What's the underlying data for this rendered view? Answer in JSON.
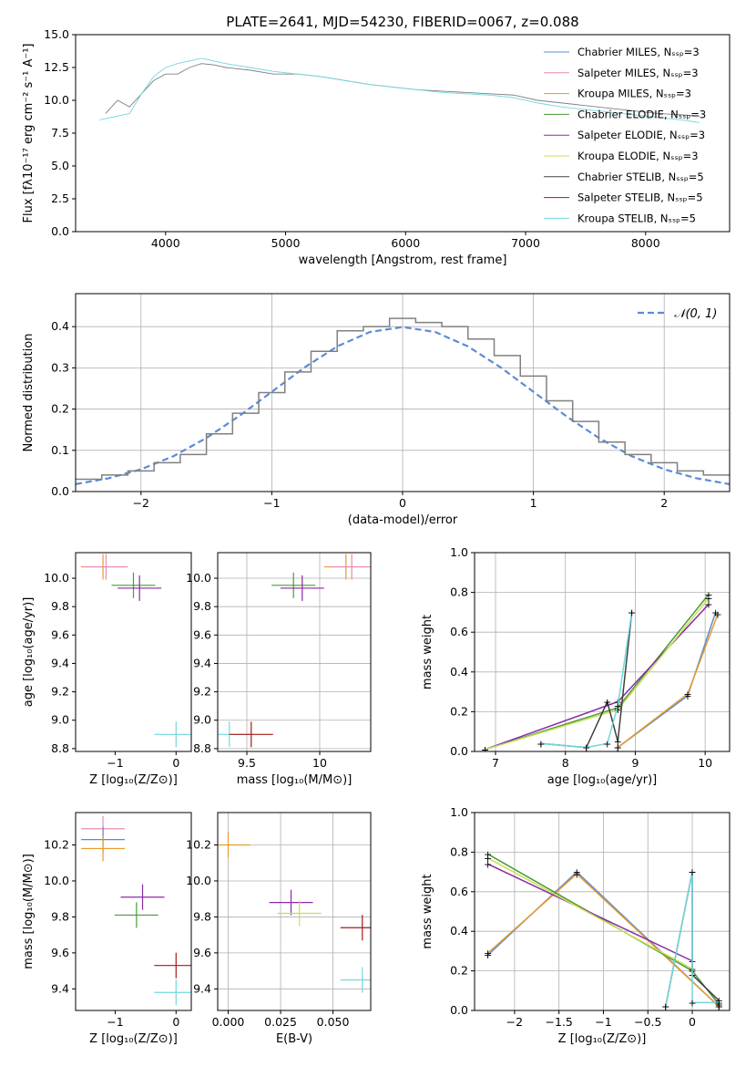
{
  "title": "PLATE=2641, MJD=54230, FIBERID=0067, z=0.088",
  "colors": {
    "Chabrier MILES": "#5b8cd6",
    "Salpeter MILES": "#e88bb8",
    "Kroupa MILES": "#e89a2a",
    "Chabrier ELODIE": "#4a9a3a",
    "Salpeter ELODIE": "#8a2aa8",
    "Kroupa ELODIE": "#c8e050",
    "Chabrier STELIB": "#404040",
    "Salpeter STELIB": "#a81818",
    "Kroupa STELIB": "#70d8dc"
  },
  "chart_data": [
    {
      "type": "line",
      "title": "PLATE=2641, MJD=54230, FIBERID=0067, z=0.088",
      "xlabel": "wavelength [Angstrom, rest frame]",
      "ylabel": "Flux [fλ10⁻¹⁷ erg cm⁻² s⁻¹ A⁻¹]",
      "xlim": [
        3250,
        8700
      ],
      "ylim": [
        0,
        15
      ],
      "xticks": [
        4000,
        5000,
        6000,
        7000,
        8000
      ],
      "yticks": [
        0.0,
        2.5,
        5.0,
        7.5,
        10.0,
        12.5,
        15.0
      ],
      "legend_position": "top-right",
      "legend": [
        "Chabrier MILES, N_SSP=3",
        "Salpeter MILES, N_SSP=3",
        "Kroupa MILES, N_SSP=3",
        "Chabrier ELODIE, N_SSP=3",
        "Salpeter ELODIE, N_SSP=3",
        "Kroupa ELODIE, N_SSP=3",
        "Chabrier STELIB, N_SSP=5",
        "Salpeter STELIB, N_SSP=5",
        "Kroupa STELIB, N_SSP=5"
      ],
      "series": [
        {
          "name": "data",
          "color": "#808080",
          "x": [
            3500,
            3600,
            3700,
            3800,
            3900,
            4000,
            4100,
            4200,
            4300,
            4400,
            4500,
            4700,
            4900,
            5100,
            5300,
            5500,
            5700,
            5900,
            6100,
            6300,
            6500,
            6700,
            6900,
            7100,
            7300,
            7500,
            7700,
            7900,
            8100,
            8300,
            8450
          ],
          "y": [
            9.0,
            10.0,
            9.5,
            10.5,
            11.5,
            12.0,
            12.0,
            12.5,
            12.8,
            12.7,
            12.5,
            12.3,
            12.0,
            12.0,
            11.8,
            11.5,
            11.2,
            11.0,
            10.8,
            10.7,
            10.6,
            10.5,
            10.4,
            10.0,
            9.8,
            9.6,
            9.4,
            9.2,
            9.0,
            8.9,
            8.8
          ]
        },
        {
          "name": "model",
          "color": "#70d8dc",
          "x": [
            3450,
            3600,
            3700,
            3800,
            3900,
            4000,
            4100,
            4200,
            4300,
            4400,
            4500,
            4700,
            4900,
            5100,
            5300,
            5500,
            5700,
            5900,
            6100,
            6300,
            6500,
            6700,
            6900,
            7100,
            7300,
            7500,
            7700,
            7900,
            8100,
            8300,
            8450
          ],
          "y": [
            8.5,
            8.8,
            9.0,
            10.5,
            11.8,
            12.5,
            12.8,
            13.0,
            13.2,
            13.0,
            12.8,
            12.5,
            12.2,
            12.0,
            11.8,
            11.5,
            11.2,
            11.0,
            10.8,
            10.6,
            10.5,
            10.4,
            10.2,
            9.8,
            9.5,
            9.3,
            9.1,
            8.9,
            8.7,
            8.5,
            8.3
          ]
        }
      ]
    },
    {
      "type": "line",
      "xlabel": "(data-model)/error",
      "ylabel": "Normed distribution",
      "xlim": [
        -2.5,
        2.5
      ],
      "ylim": [
        0,
        0.48
      ],
      "xticks": [
        -2,
        -1,
        0,
        1,
        2
      ],
      "yticks": [
        0.0,
        0.1,
        0.2,
        0.3,
        0.4
      ],
      "grid": true,
      "legend_position": "top-right",
      "legend": [
        "𝒩(0, 1)"
      ],
      "series": [
        {
          "name": "𝒩(0, 1)",
          "color": "#5b8cd6",
          "style": "dashed",
          "x": [
            -2.5,
            -2.25,
            -2.0,
            -1.75,
            -1.5,
            -1.25,
            -1.0,
            -0.75,
            -0.5,
            -0.25,
            0.0,
            0.25,
            0.5,
            0.75,
            1.0,
            1.25,
            1.5,
            1.75,
            2.0,
            2.25,
            2.5
          ],
          "y": [
            0.018,
            0.032,
            0.054,
            0.086,
            0.13,
            0.183,
            0.242,
            0.301,
            0.352,
            0.387,
            0.399,
            0.387,
            0.352,
            0.301,
            0.242,
            0.183,
            0.13,
            0.086,
            0.054,
            0.032,
            0.018
          ]
        },
        {
          "name": "histogram",
          "color": "#808080",
          "x": [
            -2.5,
            -2.3,
            -2.1,
            -1.9,
            -1.7,
            -1.5,
            -1.3,
            -1.1,
            -0.9,
            -0.7,
            -0.5,
            -0.3,
            -0.1,
            0.1,
            0.3,
            0.5,
            0.7,
            0.9,
            1.1,
            1.3,
            1.5,
            1.7,
            1.9,
            2.1,
            2.3,
            2.5
          ],
          "y": [
            0.03,
            0.04,
            0.05,
            0.07,
            0.09,
            0.14,
            0.19,
            0.24,
            0.29,
            0.34,
            0.39,
            0.4,
            0.42,
            0.41,
            0.4,
            0.37,
            0.33,
            0.28,
            0.22,
            0.17,
            0.12,
            0.09,
            0.07,
            0.05,
            0.04,
            0.03
          ]
        }
      ]
    },
    {
      "type": "scatter",
      "xlabel": "Z [log₁₀(Z/Z⊙)]",
      "ylabel": "age  [log₁₀(age/yr)]",
      "xlim": [
        -1.65,
        0.25
      ],
      "ylim": [
        8.78,
        10.18
      ],
      "xticks": [
        -1,
        0
      ],
      "yticks": [
        8.8,
        9.0,
        9.2,
        9.4,
        9.6,
        9.8,
        10.0
      ],
      "grid": false,
      "points": [
        {
          "x": -1.2,
          "y": 10.08,
          "color": "#e89a2a"
        },
        {
          "x": -1.15,
          "y": 10.08,
          "color": "#e88bb8"
        },
        {
          "x": -0.7,
          "y": 9.95,
          "color": "#4a9a3a"
        },
        {
          "x": -0.6,
          "y": 9.93,
          "color": "#8a2aa8"
        },
        {
          "x": 0.0,
          "y": 8.9,
          "color": "#70d8dc"
        }
      ]
    },
    {
      "type": "scatter",
      "xlabel": "mass [log₁₀(M/M⊙)]",
      "ylabel": "",
      "xlim": [
        9.3,
        10.35
      ],
      "ylim": [
        8.78,
        10.18
      ],
      "xticks": [
        9.5,
        10.0
      ],
      "yticks": [
        8.8,
        9.0,
        9.2,
        9.4,
        9.6,
        9.8,
        10.0
      ],
      "grid": true,
      "points": [
        {
          "x": 10.18,
          "y": 10.08,
          "color": "#e89a2a"
        },
        {
          "x": 10.22,
          "y": 10.08,
          "color": "#e88bb8"
        },
        {
          "x": 9.82,
          "y": 9.95,
          "color": "#4a9a3a"
        },
        {
          "x": 9.88,
          "y": 9.93,
          "color": "#8a2aa8"
        },
        {
          "x": 9.38,
          "y": 8.9,
          "color": "#70d8dc"
        },
        {
          "x": 9.53,
          "y": 8.9,
          "color": "#a81818"
        }
      ]
    },
    {
      "type": "line",
      "xlabel": "age  [log₁₀(age/yr)]",
      "ylabel": "mass weight",
      "xlim": [
        6.7,
        10.35
      ],
      "ylim": [
        0,
        1.0
      ],
      "xticks": [
        7,
        8,
        9,
        10
      ],
      "yticks": [
        0.0,
        0.2,
        0.4,
        0.6,
        0.8,
        1.0
      ],
      "grid": true,
      "series": [
        {
          "name": "Chabrier MILES",
          "color": "#5b8cd6",
          "x": [
            8.75,
            9.75,
            10.15
          ],
          "y": [
            0.02,
            0.28,
            0.7
          ]
        },
        {
          "name": "Kroupa MILES",
          "color": "#e89a2a",
          "x": [
            8.75,
            9.75,
            10.18
          ],
          "y": [
            0.02,
            0.29,
            0.69
          ]
        },
        {
          "name": "Chabrier ELODIE",
          "color": "#4a9a3a",
          "x": [
            6.85,
            8.75,
            10.05
          ],
          "y": [
            0.01,
            0.22,
            0.79
          ]
        },
        {
          "name": "Salpeter ELODIE",
          "color": "#8a2aa8",
          "x": [
            6.85,
            8.75,
            10.05
          ],
          "y": [
            0.01,
            0.25,
            0.74
          ]
        },
        {
          "name": "Kroupa ELODIE",
          "color": "#c8e050",
          "x": [
            6.85,
            8.75,
            10.05
          ],
          "y": [
            0.01,
            0.21,
            0.77
          ]
        },
        {
          "name": "Chabrier STELIB",
          "color": "#404040",
          "x": [
            7.65,
            8.3,
            8.6,
            8.75,
            8.95
          ],
          "y": [
            0.04,
            0.02,
            0.25,
            0.05,
            0.7
          ]
        },
        {
          "name": "Kroupa STELIB",
          "color": "#70d8dc",
          "x": [
            7.65,
            8.3,
            8.6,
            8.75,
            8.95
          ],
          "y": [
            0.04,
            0.02,
            0.04,
            0.23,
            0.7
          ]
        }
      ]
    },
    {
      "type": "scatter",
      "xlabel": "Z [log₁₀(Z/Z⊙)]",
      "ylabel": "mass [log₁₀(M/M⊙)]",
      "xlim": [
        -1.65,
        0.25
      ],
      "ylim": [
        9.28,
        10.38
      ],
      "xticks": [
        -1,
        0
      ],
      "yticks": [
        9.4,
        9.6,
        9.8,
        10.0,
        10.2
      ],
      "grid": false,
      "points": [
        {
          "x": -1.2,
          "y": 10.29,
          "color": "#e88bb8"
        },
        {
          "x": -1.2,
          "y": 10.23,
          "color": "#5b8cd6"
        },
        {
          "x": -1.2,
          "y": 10.18,
          "color": "#e89a2a"
        },
        {
          "x": -0.55,
          "y": 9.91,
          "color": "#8a2aa8"
        },
        {
          "x": -0.65,
          "y": 9.81,
          "color": "#4a9a3a"
        },
        {
          "x": 0.0,
          "y": 9.53,
          "color": "#a81818"
        },
        {
          "x": 0.0,
          "y": 9.38,
          "color": "#70d8dc"
        }
      ]
    },
    {
      "type": "scatter",
      "xlabel": "E(B-V)",
      "ylabel": "",
      "xlim": [
        -0.005,
        0.068
      ],
      "ylim": [
        9.28,
        10.38
      ],
      "xticks": [
        0.0,
        0.025,
        0.05
      ],
      "xticklabels": [
        "0.000",
        "0.025",
        "0.050"
      ],
      "yticks": [
        9.4,
        9.6,
        9.8,
        10.0,
        10.2
      ],
      "grid": true,
      "points": [
        {
          "x": 0.0,
          "y": 10.2,
          "color": "#e89a2a"
        },
        {
          "x": 0.03,
          "y": 9.88,
          "color": "#8a2aa8"
        },
        {
          "x": 0.034,
          "y": 9.82,
          "color": "#c8e050"
        },
        {
          "x": 0.064,
          "y": 9.74,
          "color": "#a81818"
        },
        {
          "x": 0.064,
          "y": 9.45,
          "color": "#70d8dc"
        }
      ]
    },
    {
      "type": "line",
      "xlabel": "Z [log₁₀(Z/Z⊙)]",
      "ylabel": "mass weight",
      "xlim": [
        -2.45,
        0.42
      ],
      "ylim": [
        0,
        1.0
      ],
      "xticks": [
        -2.0,
        -1.5,
        -1.0,
        -0.5,
        0.0
      ],
      "yticks": [
        0.0,
        0.2,
        0.4,
        0.6,
        0.8,
        1.0
      ],
      "grid": true,
      "series": [
        {
          "name": "Chabrier MILES",
          "color": "#5b8cd6",
          "x": [
            -2.3,
            -1.3,
            0.3
          ],
          "y": [
            0.28,
            0.7,
            0.02
          ]
        },
        {
          "name": "Kroupa MILES",
          "color": "#e89a2a",
          "x": [
            -2.3,
            -1.3,
            0.3
          ],
          "y": [
            0.29,
            0.69,
            0.02
          ]
        },
        {
          "name": "Chabrier ELODIE",
          "color": "#4a9a3a",
          "x": [
            -2.3,
            0.0,
            0.3
          ],
          "y": [
            0.79,
            0.2,
            0.03
          ]
        },
        {
          "name": "Salpeter ELODIE",
          "color": "#8a2aa8",
          "x": [
            -2.3,
            0.0
          ],
          "y": [
            0.74,
            0.25
          ]
        },
        {
          "name": "Kroupa ELODIE",
          "color": "#c8e050",
          "x": [
            -2.3,
            0.0
          ],
          "y": [
            0.77,
            0.21
          ]
        },
        {
          "name": "Chabrier STELIB",
          "color": "#404040",
          "x": [
            -0.3,
            0.0,
            0.0,
            0.3
          ],
          "y": [
            0.02,
            0.7,
            0.18,
            0.05
          ]
        },
        {
          "name": "Kroupa STELIB",
          "color": "#70d8dc",
          "x": [
            -0.3,
            0.0,
            0.0,
            0.3
          ],
          "y": [
            0.02,
            0.7,
            0.04,
            0.04
          ]
        }
      ]
    }
  ]
}
